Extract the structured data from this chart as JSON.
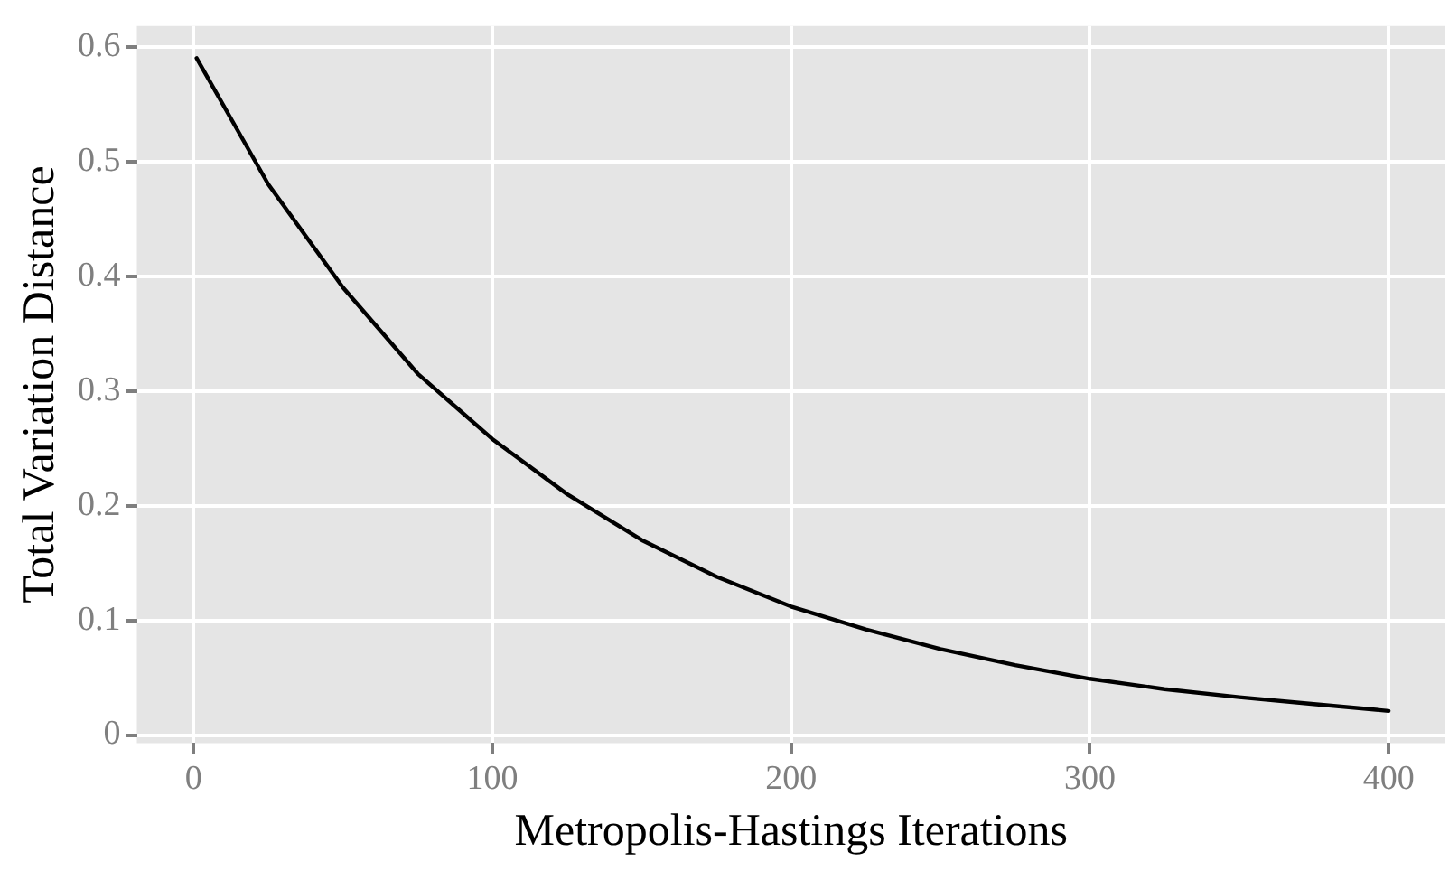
{
  "chart_data": {
    "type": "line",
    "xlabel": "Metropolis-Hastings Iterations",
    "ylabel": "Total Variation Distance",
    "x": [
      1,
      25,
      50,
      75,
      100,
      125,
      150,
      175,
      200,
      225,
      250,
      275,
      300,
      325,
      350,
      375,
      400
    ],
    "series": [
      {
        "color": "#000000",
        "values": [
          0.59,
          0.48,
          0.39,
          0.315,
          0.258,
          0.21,
          0.17,
          0.138,
          0.112,
          0.092,
          0.075,
          0.061,
          0.049,
          0.04,
          0.033,
          0.027,
          0.021
        ]
      }
    ],
    "xlim": [
      -19,
      419
    ],
    "xticks": [
      0,
      100,
      200,
      300,
      400
    ],
    "ylim": [
      -0.007,
      0.618
    ],
    "yticks": [
      0,
      0.1,
      0.2,
      0.3,
      0.4,
      0.5,
      0.6
    ],
    "grid": true,
    "legend": false,
    "marker": "none",
    "line_style": "solid"
  }
}
